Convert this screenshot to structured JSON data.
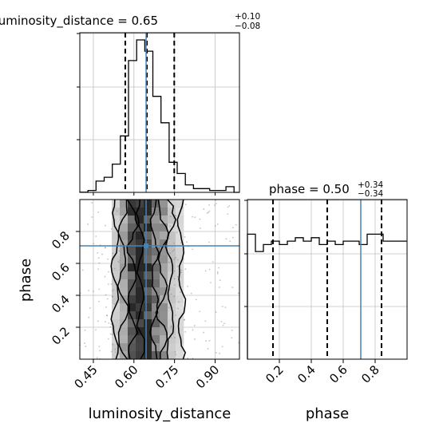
{
  "chart_data": {
    "type": "corner",
    "colors": {
      "histogram": "#000000",
      "truth": "#4682b4",
      "grid": "#c0c0c0",
      "density_dark": "#333333",
      "density_light": "#f2f2f2",
      "points": "#7a7a7a"
    },
    "grid": true,
    "params": [
      {
        "name": "luminosity_distance",
        "title_name": "luminosity_distance",
        "title_value": "0.65",
        "title_plus": "+0.10",
        "title_minus": "−0.08",
        "range": [
          0.4,
          0.99
        ],
        "ticks": [
          0.45,
          0.6,
          0.75,
          0.9
        ],
        "tick_labels": [
          "0.45",
          "0.60",
          "0.75",
          "0.90"
        ],
        "quantiles": [
          0.568,
          0.648,
          0.749
        ],
        "truth": 0.645,
        "hist_edges": [
          0.4,
          0.43,
          0.46,
          0.49,
          0.52,
          0.55,
          0.58,
          0.61,
          0.64,
          0.67,
          0.7,
          0.73,
          0.76,
          0.79,
          0.82,
          0.85,
          0.88,
          0.91,
          0.94,
          0.97,
          0.99
        ],
        "hist_counts": [
          0.1,
          1,
          6,
          8,
          15,
          30,
          70,
          81,
          75,
          51,
          37,
          16,
          10,
          4,
          2,
          2,
          1,
          1,
          3,
          0
        ]
      },
      {
        "name": "phase",
        "title_name": "phase",
        "title_value": "0.50",
        "title_plus": "+0.34",
        "title_minus": "−0.34",
        "range": [
          0.0,
          1.0
        ],
        "ticks": [
          0.2,
          0.4,
          0.6,
          0.8
        ],
        "tick_labels": [
          "0.2",
          "0.4",
          "0.6",
          "0.8"
        ],
        "quantiles": [
          0.16,
          0.5,
          0.84
        ],
        "truth": 0.71,
        "hist_edges": [
          0.0,
          0.05,
          0.1,
          0.15,
          0.2,
          0.25,
          0.3,
          0.35,
          0.4,
          0.45,
          0.5,
          0.55,
          0.6,
          0.65,
          0.7,
          0.75,
          0.8,
          0.85,
          0.9,
          0.95,
          1.0
        ],
        "hist_counts": [
          36,
          31,
          33,
          34,
          33,
          34,
          35,
          34,
          35,
          33,
          34,
          33,
          34,
          34,
          33,
          36,
          36,
          34,
          34,
          34
        ]
      }
    ],
    "axis_labels": {
      "x_left": "luminosity_distance",
      "y_left": "phase",
      "x_right": "phase"
    }
  }
}
